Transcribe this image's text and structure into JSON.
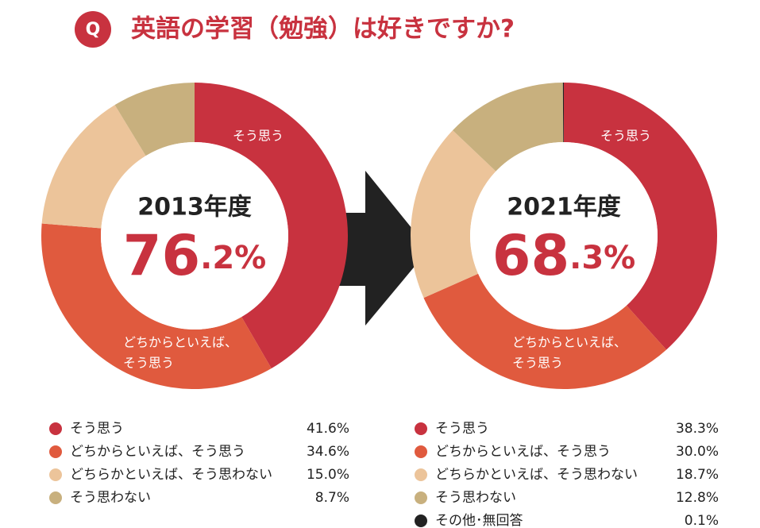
{
  "question": {
    "badge": "Q",
    "title": "英語の学習（勉強）は好きですか?"
  },
  "chart_data": [
    {
      "type": "donut",
      "subtitle": "2013年度",
      "center_label": "76.2%",
      "categories": [
        "そう思う",
        "どちからといえば、そう思う",
        "どちらかといえば、そう思わない",
        "そう思わない"
      ],
      "values": [
        41.6,
        34.6,
        15.0,
        8.7
      ],
      "value_labels": [
        "41.6%",
        "34.6%",
        "15.0%",
        "8.7%"
      ],
      "colors": [
        "#c8323f",
        "#e05a3e",
        "#ecc49a",
        "#c8b07e"
      ],
      "slice_labels": [
        [
          "そう思う"
        ],
        [
          "どちからといえば、",
          "そう思う"
        ],
        null,
        null
      ]
    },
    {
      "type": "donut",
      "subtitle": "2021年度",
      "center_label": "68.3%",
      "categories": [
        "そう思う",
        "どちからといえば、そう思う",
        "どちらかといえば、そう思わない",
        "そう思わない",
        "その他･無回答"
      ],
      "values": [
        38.3,
        30.0,
        18.7,
        12.8,
        0.1
      ],
      "value_labels": [
        "38.3%",
        "30.0%",
        "18.7%",
        "12.8%",
        "0.1%"
      ],
      "colors": [
        "#c8323f",
        "#e05a3e",
        "#ecc49a",
        "#c8b07e",
        "#222222"
      ],
      "slice_labels": [
        [
          "そう思う"
        ],
        [
          "どちからといえば、",
          "そう思う"
        ],
        null,
        null,
        null
      ]
    }
  ]
}
